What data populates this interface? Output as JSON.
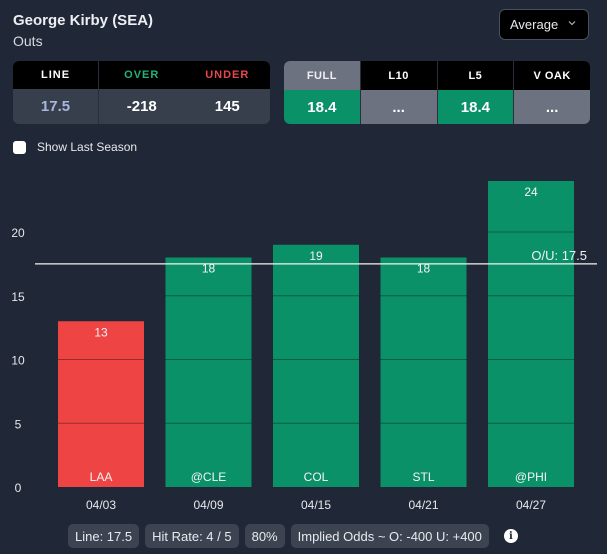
{
  "header": {
    "player": "George Kirby (SEA)",
    "stat": "Outs"
  },
  "view_select": {
    "selected": "Average",
    "icon": "chevron-down-icon"
  },
  "line_table": {
    "headers": [
      {
        "label": "LINE",
        "color": "#ffffff"
      },
      {
        "label": "OVER",
        "color": "#23b377"
      },
      {
        "label": "UNDER",
        "color": "#e5484d"
      }
    ],
    "values": [
      {
        "value": "17.5",
        "color": "#a9b7e0"
      },
      {
        "value": "-218",
        "color": "#ffffff"
      },
      {
        "value": "145",
        "color": "#ffffff"
      }
    ]
  },
  "split_table": {
    "headers": [
      "FULL",
      "L10",
      "L5",
      "V OAK"
    ],
    "active": 0,
    "values": [
      {
        "value": "18.4",
        "highlight": true
      },
      {
        "value": "...",
        "highlight": false
      },
      {
        "value": "18.4",
        "highlight": true
      },
      {
        "value": "...",
        "highlight": false
      }
    ]
  },
  "show_last_season": {
    "label": "Show Last Season",
    "checked": false
  },
  "chart_data": {
    "type": "bar",
    "categories": [
      "04/03",
      "04/09",
      "04/15",
      "04/21",
      "04/27"
    ],
    "opponents": [
      "LAA",
      "@CLE",
      "COL",
      "STL",
      "@PHI"
    ],
    "values": [
      13,
      18,
      19,
      18,
      24
    ],
    "threshold": 17.5,
    "threshold_label": "O/U: 17.5",
    "yticks": [
      0,
      5,
      10,
      15,
      20
    ],
    "ylim": [
      0,
      24
    ],
    "colors": {
      "over": "#0b9168",
      "under": "#ef4444"
    },
    "title": "",
    "xlabel": "",
    "ylabel": ""
  },
  "summary": {
    "line": "Line: 17.5",
    "hit_rate": "Hit Rate: 4 / 5",
    "pct": "80%",
    "implied": "Implied Odds ~ O: -400 U: +400"
  }
}
